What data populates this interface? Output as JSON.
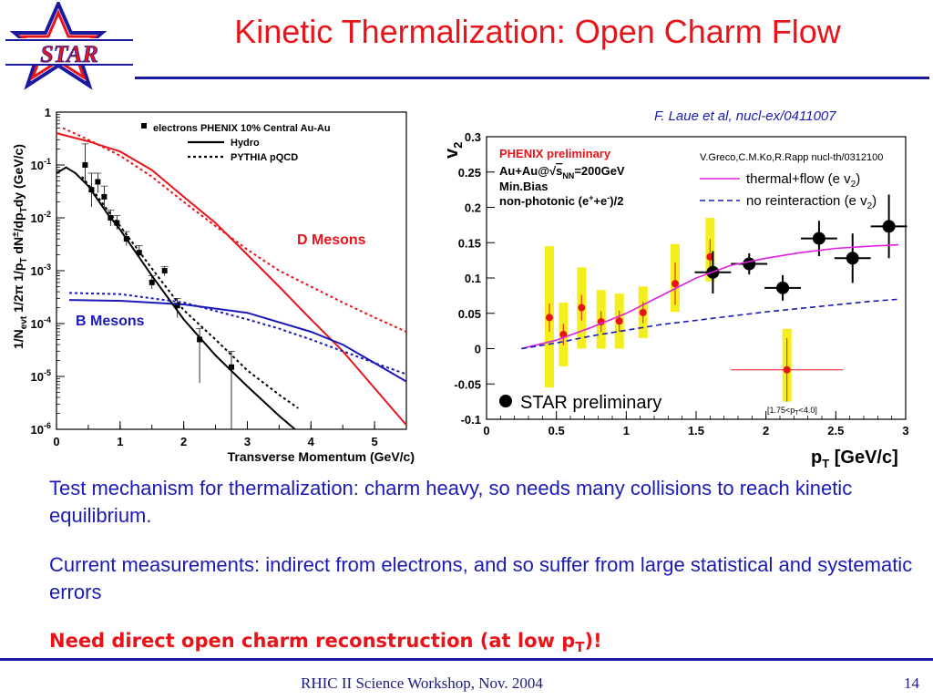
{
  "header": {
    "logo_text": "STAR",
    "title": "Kinetic Thermalization: Open Charm Flow",
    "citation": "F. Laue et al, nucl-ex/0411007"
  },
  "body": {
    "para1": "Test mechanism for thermalization: charm heavy, so needs many collisions to reach kinetic equilibrium.",
    "para2": "Current measurements: indirect from electrons, and so suffer from large statistical and systematic errors",
    "para3_main": "Need direct open charm reconstruction (at low p",
    "para3_sub": "T",
    "para3_end": ")!"
  },
  "footer": {
    "text": "RHIC II Science Workshop, Nov. 2004",
    "page": "14"
  },
  "colors": {
    "accent_red": "#e8141a",
    "accent_blue": "#1a1ab8",
    "band_yellow": "#f4ef1c"
  },
  "chart_data": [
    {
      "type": "line",
      "log_y": true,
      "xlim": [
        0,
        5.5
      ],
      "ylim": [
        1e-06,
        1
      ],
      "x_ticks": [
        0,
        1,
        2,
        3,
        4,
        5
      ],
      "y_tick_exponents": [
        -6,
        -5,
        -4,
        -3,
        -2,
        -1,
        0
      ],
      "y_tick_labels": [
        "10",
        "10",
        "10",
        "10",
        "10",
        "10",
        "1"
      ],
      "y_tick_supers": [
        "-6",
        "-5",
        "-4",
        "-3",
        "-2",
        "-1",
        ""
      ],
      "xlabel": "Transverse Momentum (GeV/c)",
      "ylabel": "1/N",
      "ylabel_parts": [
        "1/N",
        "evt",
        " 1/2π 1/p",
        "T",
        " dN",
        "±",
        "/dp",
        "T",
        "dy (GeV/c)"
      ],
      "legend": [
        {
          "label": "electrons PHENIX 10% Central Au-Au",
          "style": "marker"
        },
        {
          "label": "Hydro",
          "style": "solid"
        },
        {
          "label": "PYTHIA pQCD",
          "style": "dotted"
        }
      ],
      "annotations": {
        "d_mesons": "D Mesons",
        "b_mesons": "B Mesons"
      },
      "series": [
        {
          "role": "electrons",
          "points": [
            {
              "x": 0.45,
              "y": 0.1,
              "lo": 0.045,
              "hi": 0.25
            },
            {
              "x": 0.55,
              "y": 0.034,
              "lo": 0.016,
              "hi": 0.07
            },
            {
              "x": 0.65,
              "y": 0.048,
              "lo": 0.03,
              "hi": 0.07
            },
            {
              "x": 0.75,
              "y": 0.025,
              "lo": 0.016,
              "hi": 0.04
            },
            {
              "x": 0.85,
              "y": 0.01,
              "lo": 0.007,
              "hi": 0.014
            },
            {
              "x": 0.95,
              "y": 0.008,
              "lo": 0.006,
              "hi": 0.011
            },
            {
              "x": 1.1,
              "y": 0.004,
              "lo": 0.003,
              "hi": 0.0055
            },
            {
              "x": 1.3,
              "y": 0.0022,
              "lo": 0.0017,
              "hi": 0.003
            },
            {
              "x": 1.5,
              "y": 0.0006,
              "lo": 0.00045,
              "hi": 0.0008
            },
            {
              "x": 1.7,
              "y": 0.001,
              "lo": 0.0008,
              "hi": 0.0012
            },
            {
              "x": 1.9,
              "y": 0.00022,
              "lo": 0.00013,
              "hi": 0.0003
            },
            {
              "x": 2.25,
              "y": 5e-05,
              "lo": 7.5e-06,
              "hi": 8e-05
            },
            {
              "x": 2.75,
              "y": 1.5e-05,
              "lo": 1e-06,
              "hi": 3e-05
            }
          ]
        },
        {
          "role": "D hydro",
          "color": "#e8141a",
          "style": "solid",
          "points": [
            [
              0,
              0.4
            ],
            [
              0.5,
              0.28
            ],
            [
              1,
              0.18
            ],
            [
              1.5,
              0.08
            ],
            [
              2,
              0.025
            ],
            [
              2.5,
              0.008
            ],
            [
              3,
              0.002
            ],
            [
              3.5,
              0.0005
            ],
            [
              4,
              0.00012
            ],
            [
              4.5,
              3e-05
            ],
            [
              5,
              6e-06
            ],
            [
              5.5,
              1.2e-06
            ]
          ]
        },
        {
          "role": "D pythia",
          "color": "#e8141a",
          "style": "dotted",
          "points": [
            [
              0.1,
              0.5
            ],
            [
              0.5,
              0.3
            ],
            [
              1,
              0.15
            ],
            [
              1.5,
              0.06
            ],
            [
              2,
              0.02
            ],
            [
              2.5,
              0.007
            ],
            [
              3,
              0.0025
            ],
            [
              3.5,
              0.001
            ],
            [
              4,
              0.0005
            ],
            [
              4.5,
              0.00025
            ],
            [
              5,
              0.00013
            ],
            [
              5.5,
              7e-05
            ]
          ]
        },
        {
          "role": "B hydro",
          "color": "#1a1ab8",
          "style": "solid",
          "points": [
            [
              0.2,
              0.00028
            ],
            [
              1,
              0.00027
            ],
            [
              2,
              0.00023
            ],
            [
              3,
              0.00016
            ],
            [
              4,
              7e-05
            ],
            [
              4.5,
              4e-05
            ],
            [
              5,
              1.8e-05
            ],
            [
              5.5,
              8e-06
            ]
          ]
        },
        {
          "role": "B pythia",
          "color": "#1a1ab8",
          "style": "dotted",
          "points": [
            [
              0.2,
              0.00038
            ],
            [
              1,
              0.00036
            ],
            [
              2,
              0.00025
            ],
            [
              3,
              0.00012
            ],
            [
              3.5,
              8e-05
            ],
            [
              4,
              5e-05
            ],
            [
              4.5,
              3e-05
            ],
            [
              5,
              1.8e-05
            ],
            [
              5.5,
              1.1e-05
            ]
          ]
        },
        {
          "role": "electron hydro",
          "color": "#000000",
          "style": "solid",
          "points": [
            [
              0,
              0.07
            ],
            [
              0.15,
              0.09
            ],
            [
              0.3,
              0.07
            ],
            [
              0.5,
              0.04
            ],
            [
              0.8,
              0.012
            ],
            [
              1,
              0.006
            ],
            [
              1.5,
              0.0008
            ],
            [
              2,
              0.00012
            ],
            [
              2.5,
              2.5e-05
            ],
            [
              3,
              6.5e-06
            ],
            [
              3.5,
              1.8e-06
            ],
            [
              3.75,
              1e-06
            ]
          ]
        },
        {
          "role": "electron pythia",
          "color": "#000000",
          "style": "dotted",
          "points": [
            [
              0.4,
              0.06
            ],
            [
              0.6,
              0.03
            ],
            [
              0.8,
              0.014
            ],
            [
              1,
              0.007
            ],
            [
              1.5,
              0.0011
            ],
            [
              2,
              0.00018
            ],
            [
              2.5,
              5e-05
            ],
            [
              3,
              1.3e-05
            ],
            [
              3.5,
              4.5e-06
            ],
            [
              3.8,
              2.5e-06
            ]
          ]
        }
      ]
    },
    {
      "type": "scatter",
      "xlim": [
        0,
        3
      ],
      "ylim": [
        -0.1,
        0.3
      ],
      "x_ticks": [
        0,
        0.5,
        1,
        1.5,
        2,
        2.5,
        3
      ],
      "y_ticks": [
        -0.1,
        -0.05,
        0,
        0.05,
        0.1,
        0.15,
        0.2,
        0.25,
        0.3
      ],
      "xlabel": "p",
      "xlabel_sub": "T",
      "xlabel_end": " [GeV/c]",
      "ylabel": "v",
      "ylabel_sub": "2",
      "annotations": {
        "phenix": "PHENIX preliminary",
        "auau": "Au+Au@",
        "sqrt": "s",
        "sqrt_sub": "NN",
        "auau_end": "=200GeV",
        "minbias": "Min.Bias",
        "nonphoton": "non-photonic (e",
        "nonphoton_sup1": "+",
        "nonphoton_mid": "+e",
        "nonphoton_sup2": "-",
        "nonphoton_end": ")/2",
        "greco": "V.Greco,C.M.Ko,R.Rapp nucl-th/0312100",
        "star": "STAR preliminary",
        "range": "[1.75<p",
        "range_sub": "T",
        "range_end": "<4.0]"
      },
      "legend": [
        {
          "label": "thermal+flow (e v",
          "sub": "2",
          "end": ")",
          "color": "#e020e0",
          "style": "solid"
        },
        {
          "label": "no reinteraction (e v",
          "sub": "2",
          "end": ")",
          "color": "#1a1ab8",
          "style": "dashed"
        }
      ],
      "series": [
        {
          "role": "PHENIX",
          "color": "#e8141a",
          "points": [
            {
              "x": 0.45,
              "y": 0.044,
              "err": 0.02,
              "sys_lo": -0.055,
              "sys_hi": 0.145
            },
            {
              "x": 0.55,
              "y": 0.02,
              "err": 0.015,
              "sys_lo": -0.025,
              "sys_hi": 0.065
            },
            {
              "x": 0.68,
              "y": 0.058,
              "err": 0.018,
              "sys_lo": 0.0,
              "sys_hi": 0.115
            },
            {
              "x": 0.82,
              "y": 0.038,
              "err": 0.015,
              "sys_lo": 0.0,
              "sys_hi": 0.083
            },
            {
              "x": 0.95,
              "y": 0.039,
              "err": 0.015,
              "sys_lo": 0.0,
              "sys_hi": 0.078
            },
            {
              "x": 1.12,
              "y": 0.051,
              "err": 0.015,
              "sys_lo": 0.015,
              "sys_hi": 0.088
            },
            {
              "x": 1.35,
              "y": 0.092,
              "err": 0.03,
              "sys_lo": 0.052,
              "sys_hi": 0.148
            },
            {
              "x": 1.6,
              "y": 0.13,
              "err": 0.025,
              "sys_lo": 0.095,
              "sys_hi": 0.185
            },
            {
              "x": 2.15,
              "y": -0.03,
              "err": 0.045,
              "xerr": 0.4,
              "sys_lo": -0.075,
              "sys_hi": 0.028
            }
          ]
        },
        {
          "role": "STAR",
          "color": "#000000",
          "points": [
            {
              "x": 1.62,
              "y": 0.108,
              "xerr": 0.13,
              "err": 0.03
            },
            {
              "x": 1.88,
              "y": 0.12,
              "xerr": 0.13,
              "err": 0.015
            },
            {
              "x": 2.12,
              "y": 0.086,
              "xerr": 0.13,
              "err": 0.018
            },
            {
              "x": 2.38,
              "y": 0.156,
              "xerr": 0.13,
              "err": 0.025
            },
            {
              "x": 2.62,
              "y": 0.128,
              "xerr": 0.13,
              "err": 0.035
            },
            {
              "x": 2.88,
              "y": 0.173,
              "xerr": 0.13,
              "err": 0.045
            }
          ]
        },
        {
          "role": "thermal+flow",
          "color": "#e020e0",
          "style": "solid",
          "points": [
            [
              0.25,
              0.0
            ],
            [
              0.5,
              0.012
            ],
            [
              0.75,
              0.03
            ],
            [
              1,
              0.05
            ],
            [
              1.25,
              0.075
            ],
            [
              1.5,
              0.1
            ],
            [
              1.75,
              0.118
            ],
            [
              2,
              0.128
            ],
            [
              2.25,
              0.136
            ],
            [
              2.5,
              0.142
            ],
            [
              2.75,
              0.145
            ],
            [
              2.95,
              0.147
            ]
          ]
        },
        {
          "role": "no reinteraction",
          "color": "#1a1ab8",
          "style": "dashed",
          "points": [
            [
              0.25,
              0.0
            ],
            [
              0.5,
              0.008
            ],
            [
              0.75,
              0.018
            ],
            [
              1,
              0.026
            ],
            [
              1.25,
              0.034
            ],
            [
              1.5,
              0.04
            ],
            [
              1.75,
              0.046
            ],
            [
              2,
              0.052
            ],
            [
              2.25,
              0.057
            ],
            [
              2.5,
              0.062
            ],
            [
              2.75,
              0.067
            ],
            [
              2.95,
              0.07
            ]
          ]
        }
      ]
    }
  ]
}
